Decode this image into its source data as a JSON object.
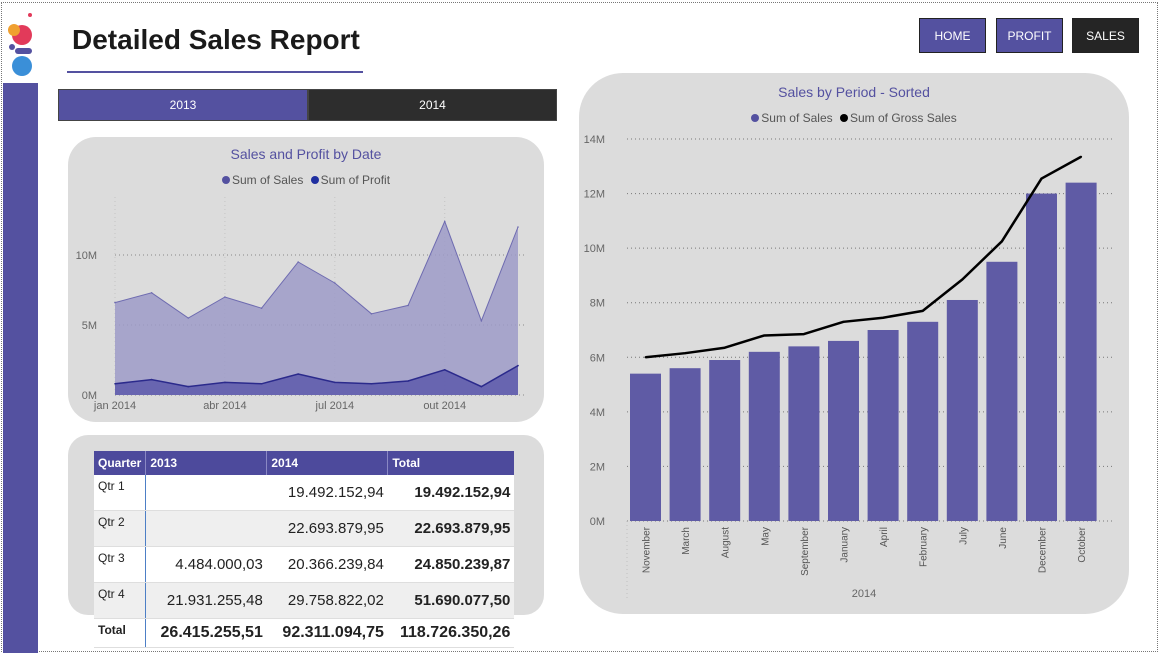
{
  "header": {
    "title": "Detailed Sales Report"
  },
  "nav": [
    {
      "label": "HOME",
      "color": "#5451a0"
    },
    {
      "label": "PROFIT",
      "color": "#5451a0"
    },
    {
      "label": "SALES",
      "color": "#252525"
    }
  ],
  "year_tabs": [
    {
      "label": "2013",
      "color": "#5451a0",
      "selected": true
    },
    {
      "label": "2014",
      "color": "#2d2d2d",
      "selected": false
    }
  ],
  "colors": {
    "accent": "#5451a0",
    "sales_area": "#9d9bc8",
    "profit_area": "#6461ae",
    "bar": "#5f5ba5",
    "line": "#000000"
  },
  "chart_data": [
    {
      "type": "area",
      "title": "Sales and Profit by Date",
      "legend": [
        "Sum of  Sales",
        "Sum of Profit"
      ],
      "legend_colors": [
        "#5451a0",
        "#1f2fa0"
      ],
      "legend_placement": "top",
      "x_ticks": [
        "jan 2014",
        "abr 2014",
        "jul 2014",
        "out 2014"
      ],
      "y_ticks": [
        "0M",
        "5M",
        "10M"
      ],
      "ylim": [
        0,
        15000000
      ],
      "x": [
        "2014-01",
        "2014-02",
        "2014-03",
        "2014-04",
        "2014-05",
        "2014-06",
        "2014-07",
        "2014-08",
        "2014-09",
        "2014-10",
        "2014-11",
        "2014-12"
      ],
      "series": [
        {
          "name": "Sum of  Sales",
          "values": [
            6600000,
            7300000,
            5500000,
            7000000,
            6200000,
            9500000,
            8000000,
            5800000,
            6400000,
            12400000,
            5300000,
            12000000
          ]
        },
        {
          "name": "Sum of Profit",
          "values": [
            800000,
            1100000,
            600000,
            900000,
            800000,
            1500000,
            900000,
            800000,
            1000000,
            1800000,
            600000,
            2100000
          ]
        }
      ],
      "grid": true
    },
    {
      "type": "bar",
      "title": "Sales by Period - Sorted",
      "legend": [
        "Sum of  Sales",
        "Sum of Gross Sales"
      ],
      "legend_colors": [
        "#5451a0",
        "#000000"
      ],
      "legend_placement": "top",
      "xlabel": "2014",
      "categories": [
        "November",
        "March",
        "August",
        "May",
        "September",
        "January",
        "April",
        "February",
        "July",
        "June",
        "December",
        "October"
      ],
      "series": [
        {
          "name": "Sum of  Sales",
          "type": "bar",
          "values": [
            5400000,
            5600000,
            5900000,
            6200000,
            6400000,
            6600000,
            7000000,
            7300000,
            8100000,
            9500000,
            12000000,
            12400000
          ]
        },
        {
          "name": "Sum of Gross Sales",
          "type": "line",
          "values": [
            6000000,
            6150000,
            6350000,
            6800000,
            6850000,
            7300000,
            7450000,
            7700000,
            8850000,
            10250000,
            12550000,
            13350000
          ]
        }
      ],
      "y_ticks": [
        "0M",
        "2M",
        "4M",
        "6M",
        "8M",
        "10M",
        "12M",
        "14M"
      ],
      "ylim": [
        0,
        14000000
      ],
      "grid": true
    }
  ],
  "matrix": {
    "headers": [
      "Quarter",
      "2013",
      "2014",
      "Total"
    ],
    "rows": [
      {
        "q": "Qtr 1",
        "y2013": "",
        "y2014": "19.492.152,94",
        "total": "19.492.152,94"
      },
      {
        "q": "Qtr 2",
        "y2013": "",
        "y2014": "22.693.879,95",
        "total": "22.693.879,95"
      },
      {
        "q": "Qtr 3",
        "y2013": "4.484.000,03",
        "y2014": "20.366.239,84",
        "total": "24.850.239,87"
      },
      {
        "q": "Qtr 4",
        "y2013": "21.931.255,48",
        "y2014": "29.758.822,02",
        "total": "51.690.077,50"
      }
    ],
    "total": {
      "q": "Total",
      "y2013": "26.415.255,51",
      "y2014": "92.311.094,75",
      "total": "118.726.350,26"
    }
  }
}
